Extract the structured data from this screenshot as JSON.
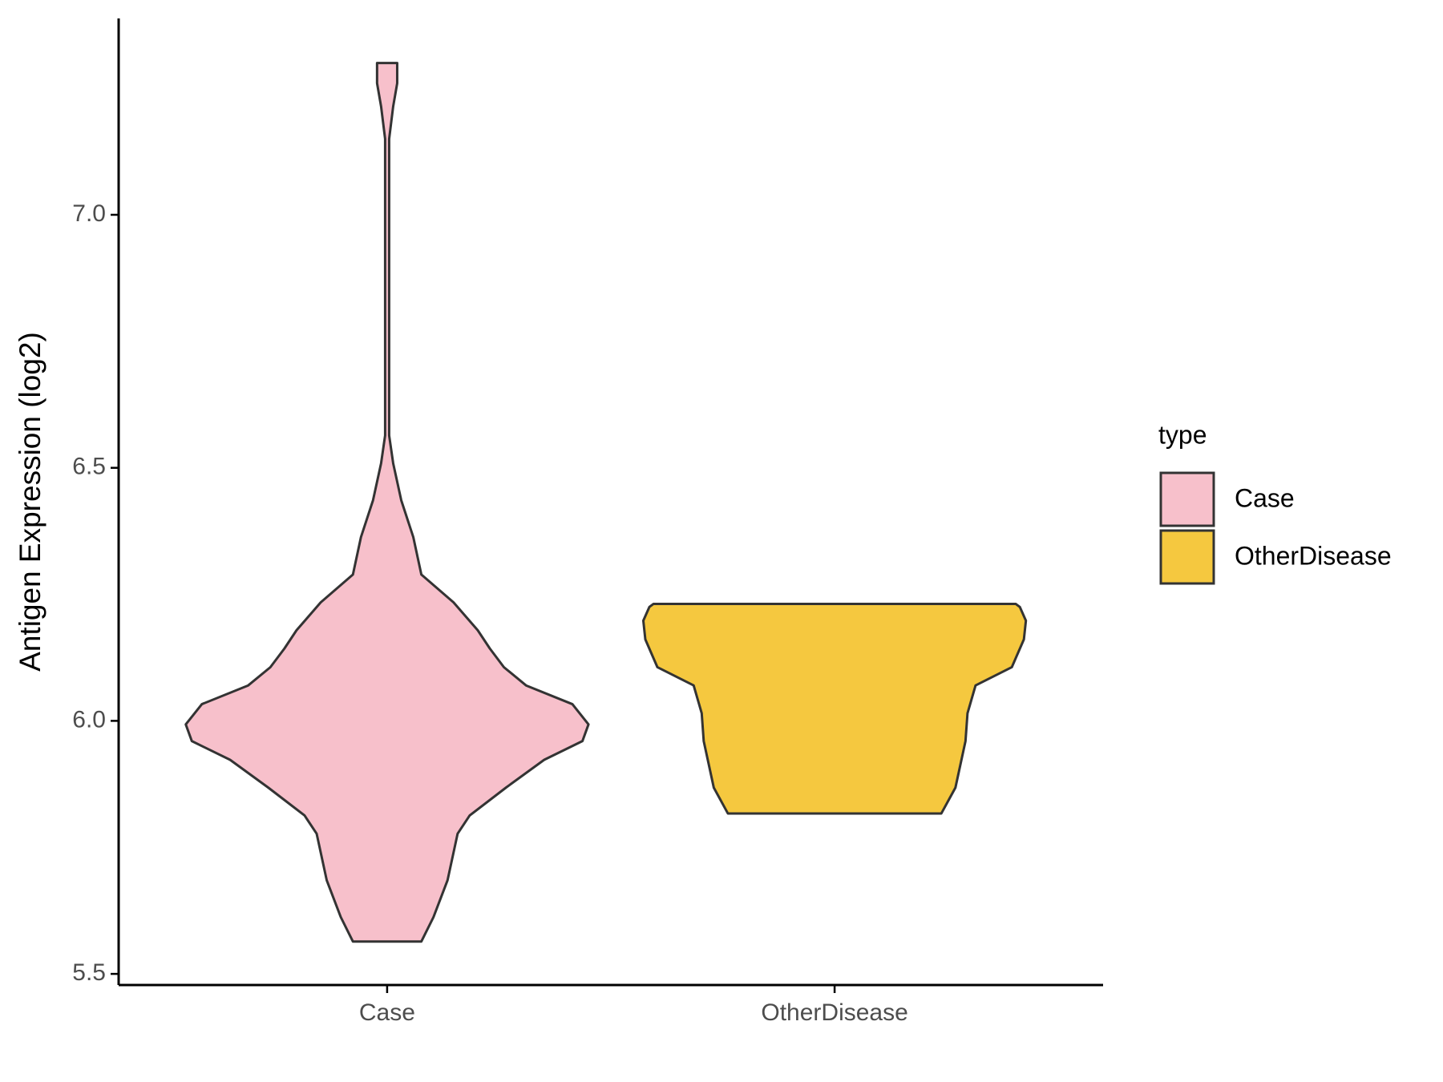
{
  "chart_data": {
    "type": "violin",
    "y_label": "Antigen Expression (log2)",
    "categories": [
      "Case",
      "OtherDisease"
    ],
    "legend_title": "type",
    "legend_position": "right",
    "ylim": [
      5.478,
      7.388
    ],
    "yticks": [
      {
        "value": 5.5,
        "label": "5.5"
      },
      {
        "value": 6.0,
        "label": "6.0"
      },
      {
        "value": 6.5,
        "label": "6.5"
      },
      {
        "value": 7.0,
        "label": "7.0"
      }
    ],
    "series": [
      {
        "name": "Case",
        "color": "#f7c0cb",
        "y": [
          5.564,
          5.612,
          5.685,
          5.777,
          5.813,
          5.868,
          5.923,
          5.96,
          5.993,
          6.033,
          6.07,
          6.106,
          6.143,
          6.179,
          6.234,
          6.289,
          6.363,
          6.436,
          6.509,
          6.564,
          6.875,
          7.15,
          7.214,
          7.26,
          7.3
        ],
        "density": [
          0.17,
          0.23,
          0.3,
          0.35,
          0.41,
          0.59,
          0.78,
          0.97,
          1.0,
          0.92,
          0.69,
          0.58,
          0.51,
          0.45,
          0.33,
          0.17,
          0.13,
          0.07,
          0.03,
          0.01,
          0.01,
          0.01,
          0.03,
          0.05,
          0.05
        ]
      },
      {
        "name": "OtherDisease",
        "color": "#f5c83f",
        "y": [
          5.817,
          5.868,
          5.96,
          6.015,
          6.07,
          6.106,
          6.161,
          6.198,
          6.225,
          6.231
        ],
        "density": [
          0.53,
          0.6,
          0.65,
          0.66,
          0.7,
          0.88,
          0.94,
          0.95,
          0.92,
          0.9
        ]
      }
    ]
  }
}
